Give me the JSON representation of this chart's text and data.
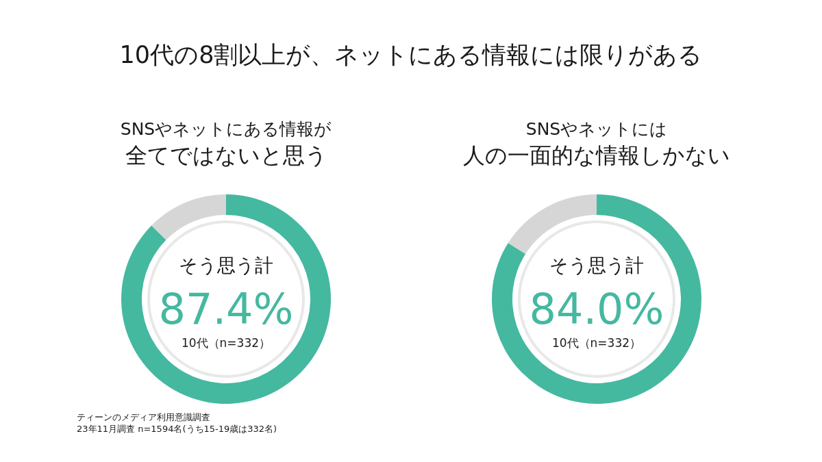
{
  "chart_data": [
    {
      "type": "other",
      "title": "10代の8割以上が、ネットにある情報には限りがある"
    },
    {
      "type": "donut",
      "title": "SNSやネットにある情報が",
      "subtitle": "全てではないと思う",
      "categories": [
        "そう思う計",
        null
      ],
      "values": [
        87.4,
        12.6
      ],
      "colors": [
        "#45b8a0",
        "#d6d6d6"
      ],
      "value_labels": [
        "87.4%",
        null
      ],
      "annotations": [
        "10代（n=332）",
        "ティーンのメディア利用意識調査",
        "23年11月調査  n=1594名(うち15-19歳は332名)"
      ]
    },
    {
      "type": "donut",
      "title": "SNSやネットには",
      "subtitle": "人の一面的な情報しかない",
      "categories": [
        "そう思う計",
        null
      ],
      "values": [
        84.0,
        16.0
      ],
      "colors": [
        "#45b8a0",
        "#d6d6d6"
      ],
      "value_labels": [
        "84.0%",
        null
      ],
      "annotations": [
        "10代（n=332）"
      ]
    }
  ]
}
